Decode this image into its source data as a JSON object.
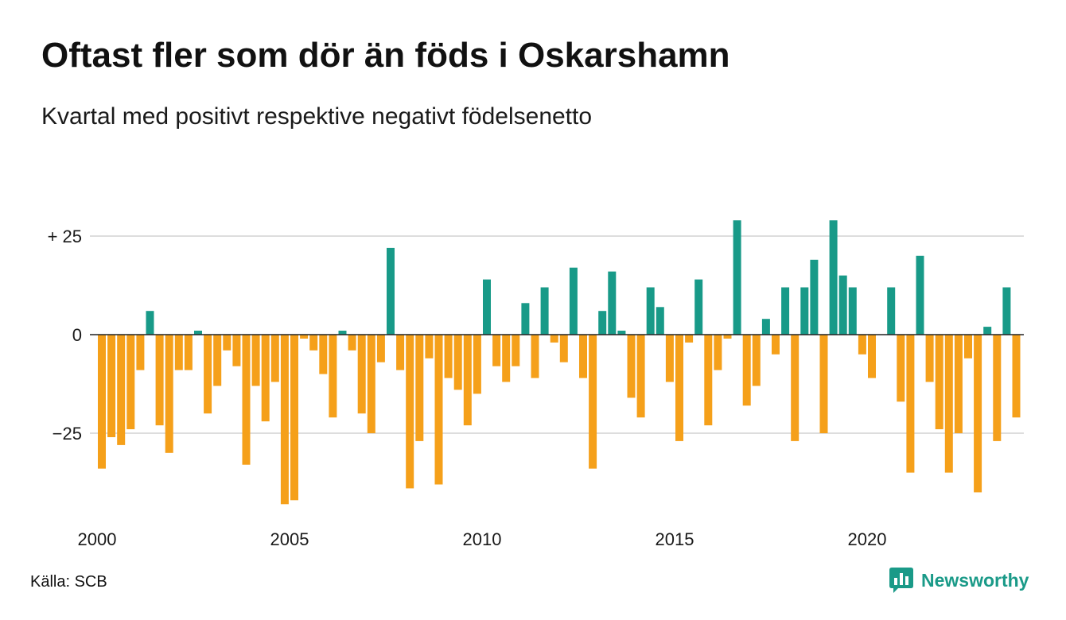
{
  "source": "Källa: SCB",
  "brand": {
    "name": "Newsworthy",
    "icon": "newsworthy-logo-icon"
  },
  "colors": {
    "positive": "#189a88",
    "negative": "#f5a01a",
    "grid": "#dddddd",
    "zero_line": "#222222",
    "brand": "#1a9a88"
  },
  "chart_data": {
    "type": "bar",
    "title": "Oftast fler som dör än föds i Oskarshamn",
    "subtitle": "Kvartal med positivt respektive negativt födelsenetto",
    "xlabel": "",
    "ylabel": "",
    "grid": true,
    "legend": "none",
    "yticks": [
      {
        "value": 25,
        "label": "+ 25"
      },
      {
        "value": 0,
        "label": "0"
      },
      {
        "value": -25,
        "label": "−25"
      }
    ],
    "xticks": [
      "2000",
      "2005",
      "2010",
      "2015",
      "2020"
    ],
    "x": [
      "2000-Q1",
      "2000-Q2",
      "2000-Q3",
      "2000-Q4",
      "2001-Q1",
      "2001-Q2",
      "2001-Q3",
      "2001-Q4",
      "2002-Q1",
      "2002-Q2",
      "2002-Q3",
      "2002-Q4",
      "2003-Q1",
      "2003-Q2",
      "2003-Q3",
      "2003-Q4",
      "2004-Q1",
      "2004-Q2",
      "2004-Q3",
      "2004-Q4",
      "2005-Q1",
      "2005-Q2",
      "2005-Q3",
      "2005-Q4",
      "2006-Q1",
      "2006-Q2",
      "2006-Q3",
      "2006-Q4",
      "2007-Q1",
      "2007-Q2",
      "2007-Q3",
      "2007-Q4",
      "2008-Q1",
      "2008-Q2",
      "2008-Q3",
      "2008-Q4",
      "2009-Q1",
      "2009-Q2",
      "2009-Q3",
      "2009-Q4",
      "2010-Q1",
      "2010-Q2",
      "2010-Q3",
      "2010-Q4",
      "2011-Q1",
      "2011-Q2",
      "2011-Q3",
      "2011-Q4",
      "2012-Q1",
      "2012-Q2",
      "2012-Q3",
      "2012-Q4",
      "2013-Q1",
      "2013-Q2",
      "2013-Q3",
      "2013-Q4",
      "2014-Q1",
      "2014-Q2",
      "2014-Q3",
      "2014-Q4",
      "2015-Q1",
      "2015-Q2",
      "2015-Q3",
      "2015-Q4",
      "2016-Q1",
      "2016-Q2",
      "2016-Q3",
      "2016-Q4",
      "2017-Q1",
      "2017-Q2",
      "2017-Q3",
      "2017-Q4",
      "2018-Q1",
      "2018-Q2",
      "2018-Q3",
      "2018-Q4",
      "2019-Q1",
      "2019-Q2",
      "2019-Q3",
      "2019-Q4",
      "2020-Q1",
      "2020-Q2",
      "2020-Q3",
      "2020-Q4",
      "2021-Q1",
      "2021-Q2",
      "2021-Q3",
      "2021-Q4",
      "2022-Q1",
      "2022-Q2",
      "2022-Q3",
      "2022-Q4",
      "2023-Q1",
      "2023-Q2",
      "2023-Q3",
      "2023-Q4"
    ],
    "values": [
      -34,
      -26,
      -28,
      -24,
      -9,
      6,
      -23,
      -30,
      -9,
      -9,
      1,
      -20,
      -13,
      -4,
      -8,
      -33,
      -13,
      -22,
      -12,
      -43,
      -42,
      -1,
      -4,
      -10,
      -21,
      1,
      -4,
      -20,
      -25,
      -7,
      22,
      -9,
      -39,
      -27,
      -6,
      -38,
      -11,
      -14,
      -23,
      -15,
      14,
      -8,
      -12,
      -8,
      8,
      -11,
      12,
      -2,
      -7,
      17,
      -11,
      -34,
      6,
      16,
      1,
      -16,
      -21,
      12,
      7,
      -12,
      -27,
      -2,
      14,
      -23,
      -9,
      -1,
      29,
      -18,
      -13,
      4,
      -5,
      12,
      -27,
      12,
      19,
      -25,
      29,
      15,
      12,
      -5,
      -11,
      0,
      12,
      -17,
      -35,
      20,
      -12,
      -24,
      -35,
      -25,
      -6,
      -40,
      2,
      -27,
      12,
      -21
    ]
  }
}
